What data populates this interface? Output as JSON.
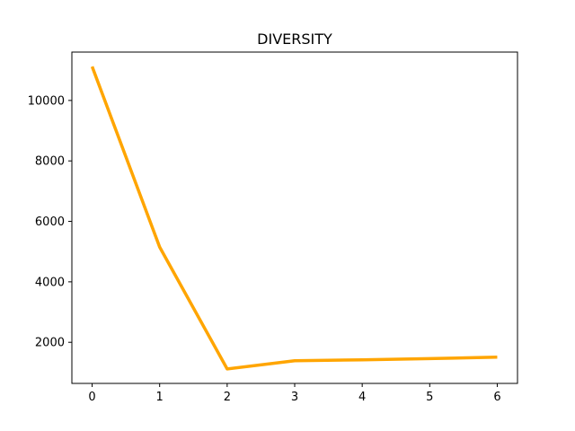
{
  "chart_data": {
    "type": "line",
    "title": "DIVERSITY",
    "xlabel": "",
    "ylabel": "",
    "x": [
      0,
      1,
      2,
      3,
      4,
      5,
      6
    ],
    "series": [
      {
        "values": [
          11120,
          5150,
          1120,
          1390,
          1420,
          1460,
          1510
        ],
        "color": "#ffa500"
      }
    ],
    "xlim": [
      -0.3,
      6.3
    ],
    "ylim": [
      640,
      11600
    ],
    "xticks": [
      0,
      1,
      2,
      3,
      4,
      5,
      6
    ],
    "yticks": [
      2000,
      4000,
      6000,
      8000,
      10000
    ],
    "grid": false,
    "legend": "none"
  }
}
